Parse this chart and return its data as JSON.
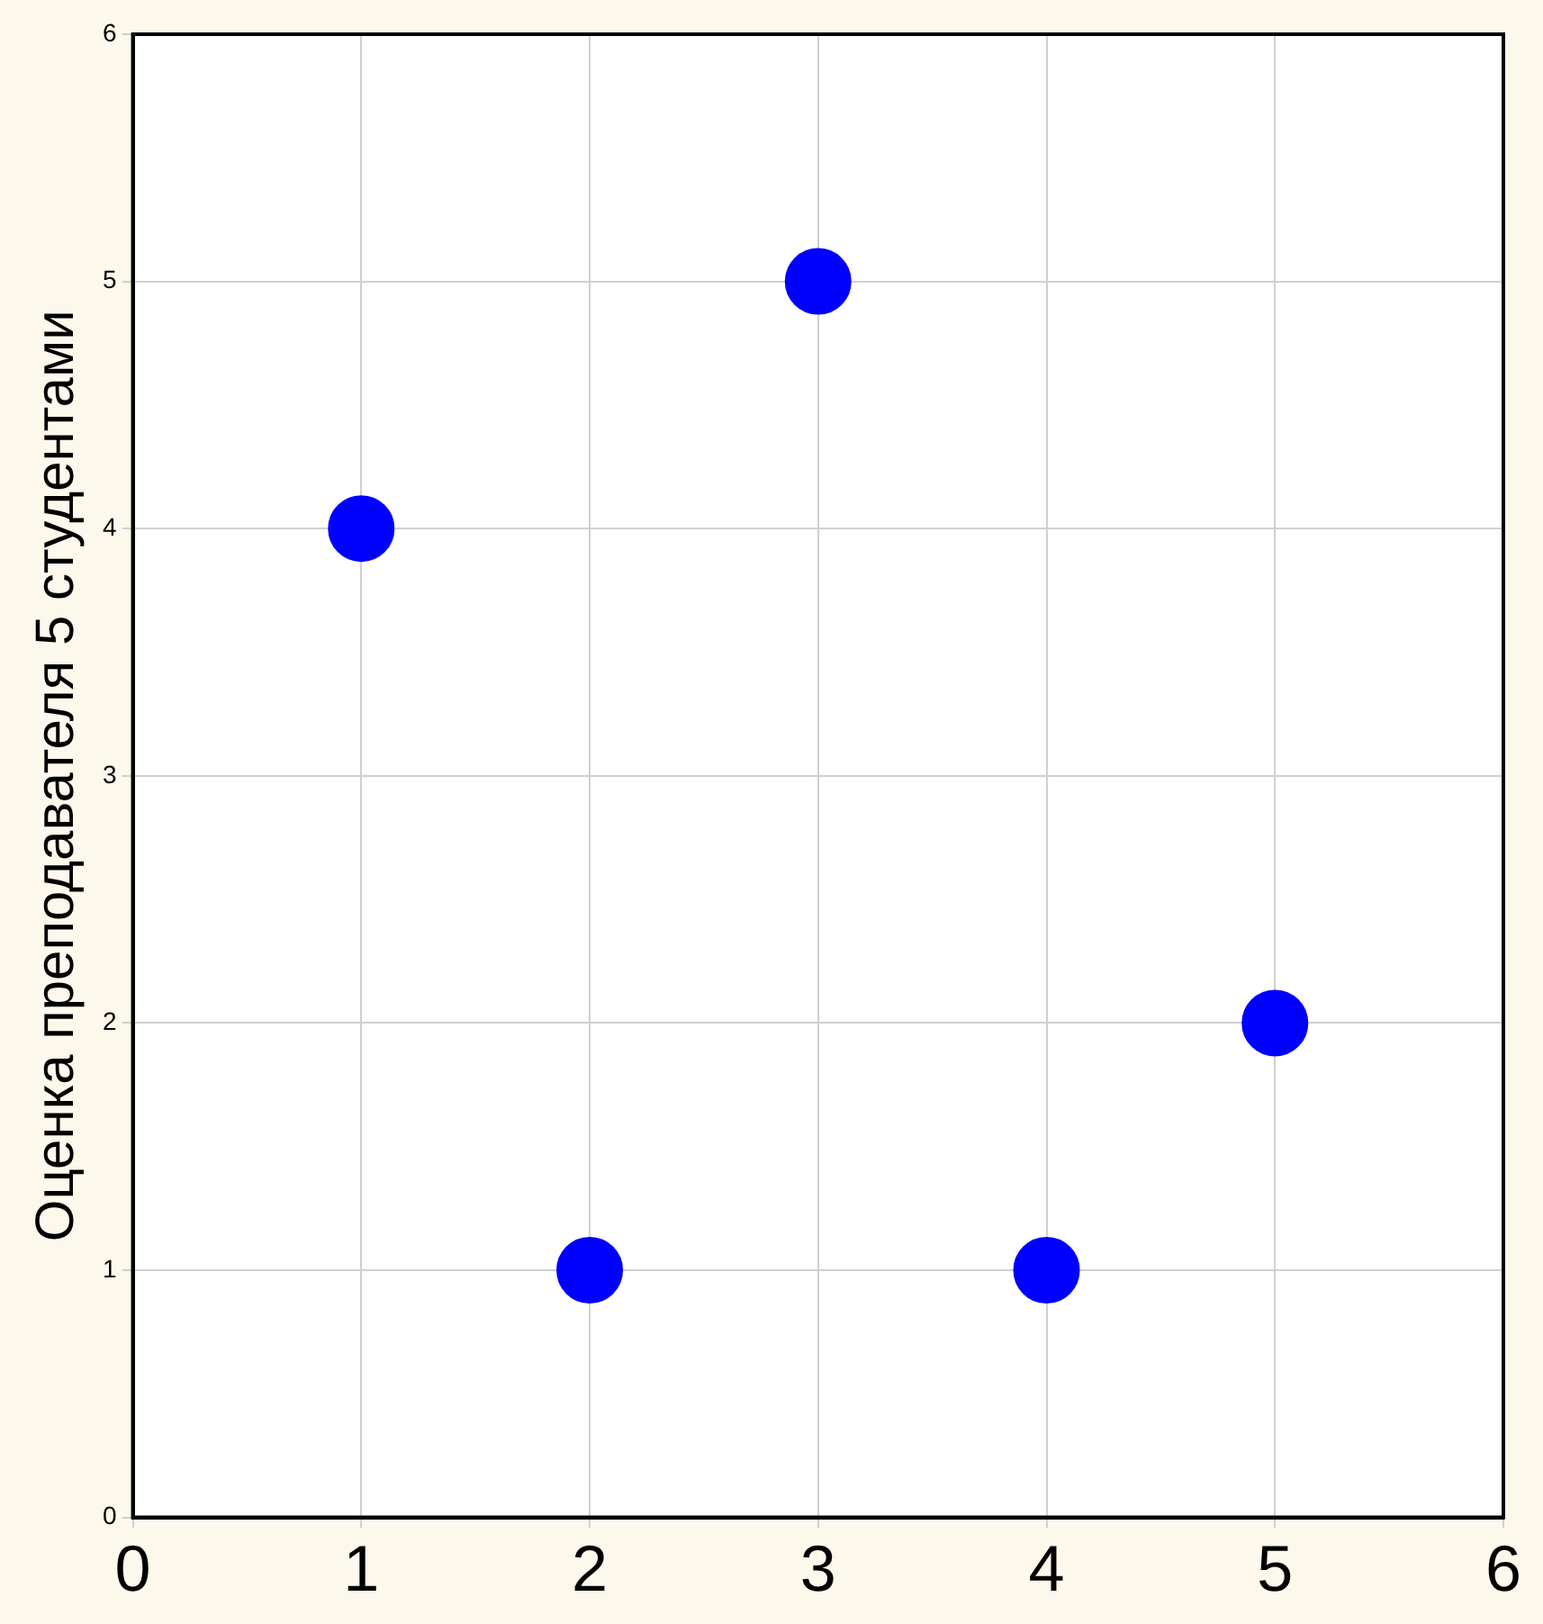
{
  "chart_data": {
    "type": "scatter",
    "ylabel": "Оценка преподавателя 5 студентами",
    "x": [
      1,
      2,
      3,
      4,
      5
    ],
    "series": [
      {
        "color": "#0000ff",
        "values": [
          4,
          1,
          5,
          1,
          2
        ]
      }
    ],
    "xlim": [
      0,
      6
    ],
    "xticks": [
      0,
      1,
      2,
      3,
      4,
      5,
      6
    ],
    "ylim": [
      0,
      6
    ],
    "yticks": [
      0,
      1,
      2,
      3,
      4,
      5,
      6
    ],
    "grid": true,
    "legend": false,
    "marker": "circle"
  }
}
